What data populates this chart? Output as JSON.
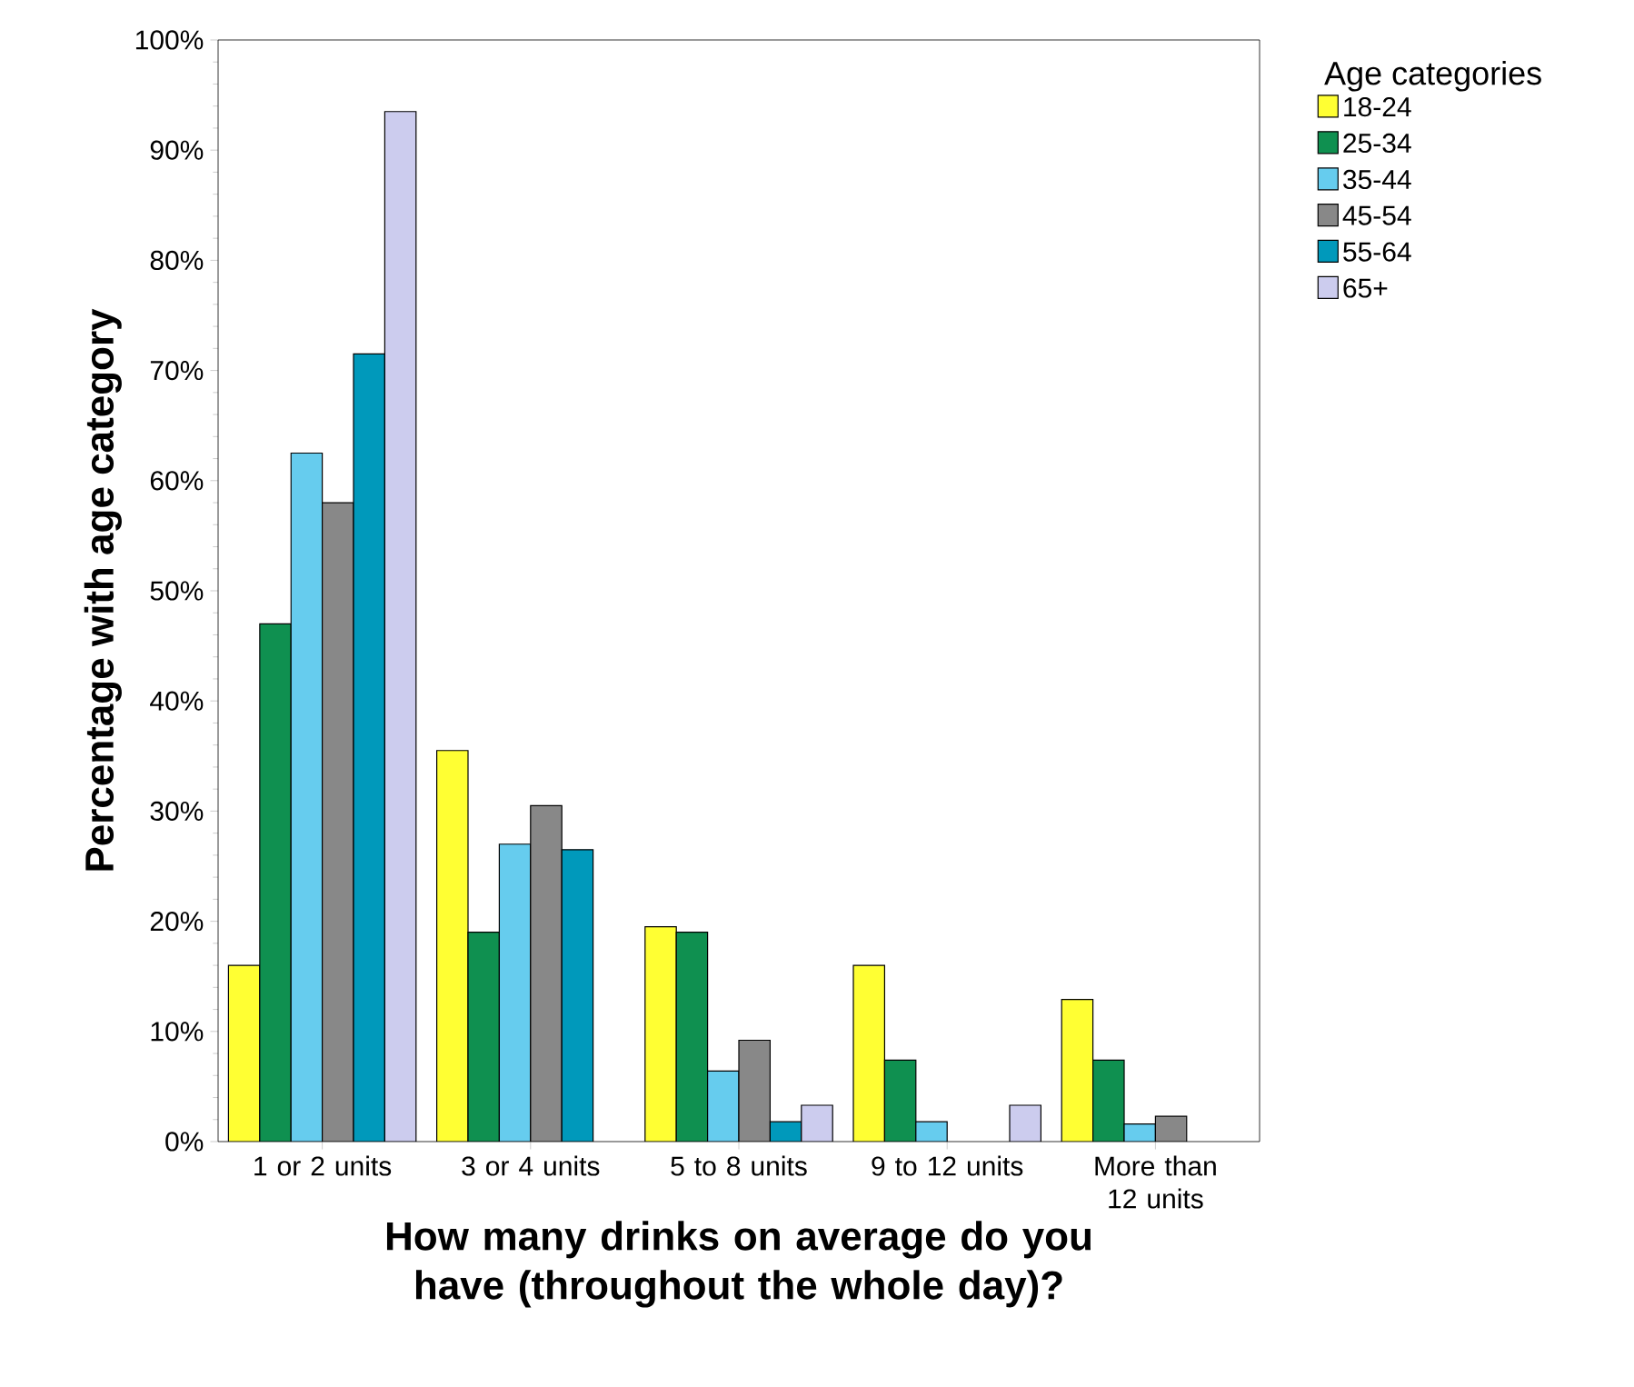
{
  "chart_data": {
    "type": "bar",
    "xlabel": "How many drinks on average do you have (throughout the whole day)?",
    "ylabel": "Percentage with age category",
    "legend_title": "Age categories",
    "legend": "top right",
    "grid": false,
    "categories": [
      "1 or 2 units",
      "3 or 4 units",
      "5 to 8 units",
      "9 to 12 units",
      "More than 12 units"
    ],
    "ylim": [
      0,
      100
    ],
    "yticks": [
      {
        "value": 0,
        "label": "0%"
      },
      {
        "value": 10,
        "label": "10%"
      },
      {
        "value": 20,
        "label": "20%"
      },
      {
        "value": 30,
        "label": "30%"
      },
      {
        "value": 40,
        "label": "40%"
      },
      {
        "value": 50,
        "label": "50%"
      },
      {
        "value": 60,
        "label": "60%"
      },
      {
        "value": 70,
        "label": "70%"
      },
      {
        "value": 80,
        "label": "80%"
      },
      {
        "value": 90,
        "label": "90%"
      },
      {
        "value": 100,
        "label": "100%"
      }
    ],
    "series": [
      {
        "name": "18-24",
        "color": "#ffff33",
        "values": [
          16,
          35.5,
          19.5,
          16,
          12.9
        ]
      },
      {
        "name": "25-34",
        "color": "#0f9050",
        "values": [
          47,
          19,
          19,
          7.4,
          7.4
        ]
      },
      {
        "name": "35-44",
        "color": "#66ccee",
        "values": [
          62.5,
          27,
          6.4,
          1.8,
          1.6
        ]
      },
      {
        "name": "45-54",
        "color": "#888888",
        "values": [
          58,
          30.5,
          9.2,
          null,
          2.3
        ]
      },
      {
        "name": "55-64",
        "color": "#0099bb",
        "values": [
          71.5,
          26.5,
          1.8,
          null,
          null
        ]
      },
      {
        "name": "65+",
        "color": "#ccccee",
        "values": [
          93.5,
          null,
          3.3,
          3.3,
          null
        ]
      }
    ]
  }
}
